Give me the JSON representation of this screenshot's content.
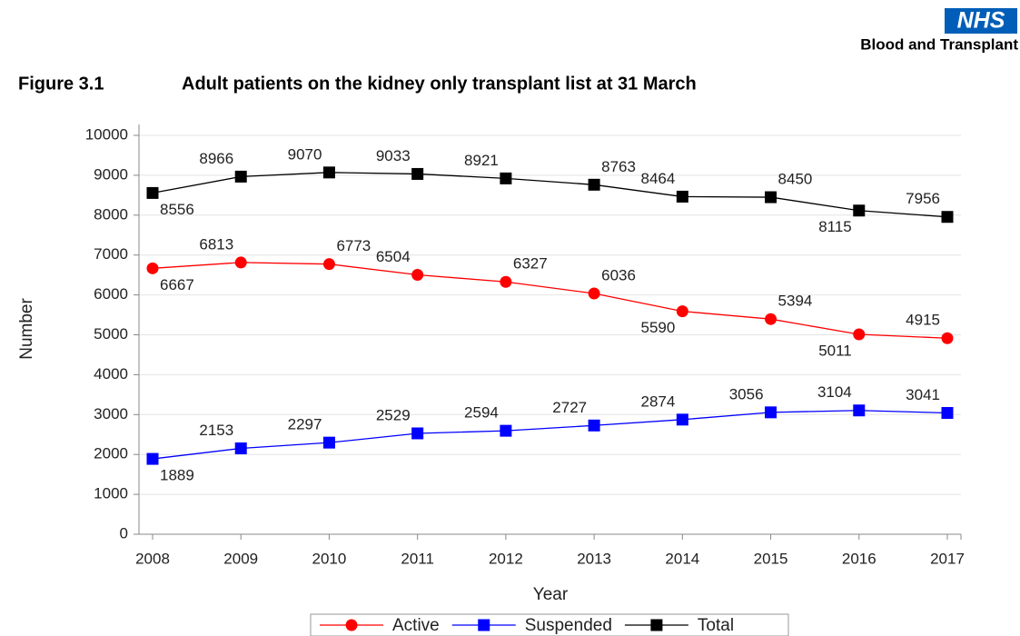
{
  "header": {
    "logo": "NHS",
    "organisation": "Blood and Transplant",
    "figure": "Figure 3.1"
  },
  "chart_data": {
    "type": "line",
    "title": "Adult patients on the kidney only transplant list at 31 March",
    "x_label": "Year",
    "y_label": "Number",
    "categories": [
      "2008",
      "2009",
      "2010",
      "2011",
      "2012",
      "2013",
      "2014",
      "2015",
      "2016",
      "2017"
    ],
    "series": [
      {
        "name": "Active",
        "color": "#ff0000",
        "marker": "circle",
        "values": [
          6667,
          6813,
          6773,
          6504,
          6327,
          6036,
          5590,
          5394,
          5011,
          4915
        ]
      },
      {
        "name": "Suspended",
        "color": "#0000ff",
        "marker": "square",
        "values": [
          1889,
          2153,
          2297,
          2529,
          2594,
          2727,
          2874,
          3056,
          3104,
          3041
        ]
      },
      {
        "name": "Total",
        "color": "#000000",
        "marker": "square",
        "values": [
          8556,
          8966,
          9070,
          9033,
          8921,
          8763,
          8464,
          8450,
          8115,
          7956
        ]
      }
    ],
    "ylim": [
      0,
      10000
    ],
    "yticks": [
      0,
      1000,
      2000,
      3000,
      4000,
      5000,
      6000,
      7000,
      8000,
      9000,
      10000
    ],
    "grid": true,
    "legend": "bottom"
  }
}
